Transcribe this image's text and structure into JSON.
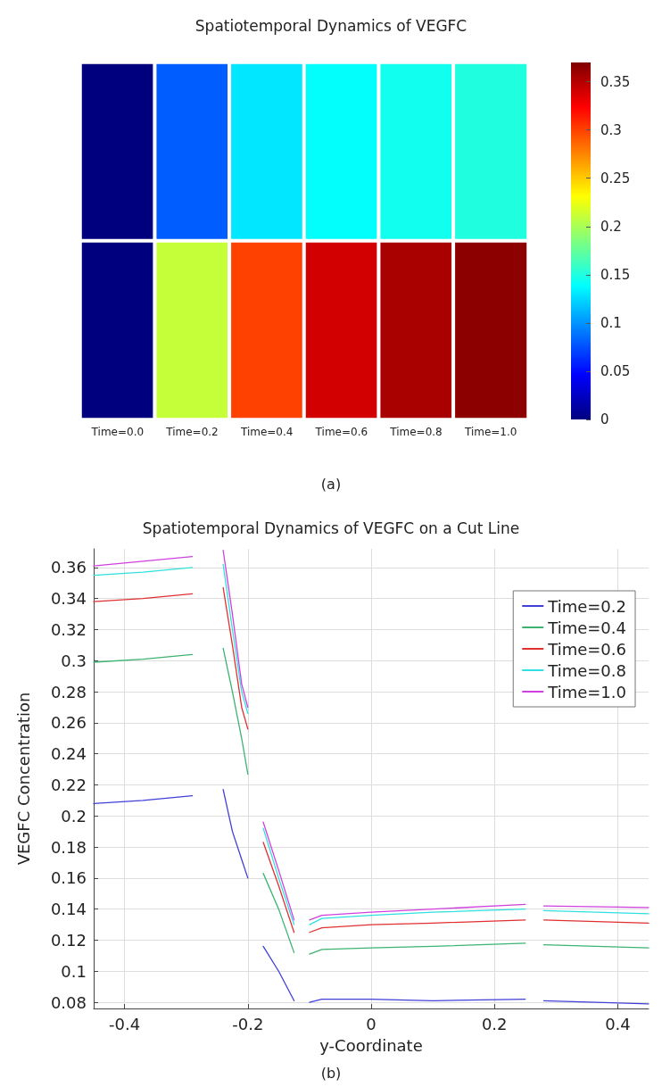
{
  "chart_data": [
    {
      "type": "heatmap",
      "title": "Spatiotemporal Dynamics of VEGFC",
      "categories": [
        "Time=0.0",
        "Time=0.2",
        "Time=0.4",
        "Time=0.6",
        "Time=0.8",
        "Time=1.0"
      ],
      "y_categories": [
        null,
        null
      ],
      "cells": [
        [
          0,
          0.08,
          0.13,
          0.14,
          0.145,
          0.15
        ],
        [
          0,
          0.21,
          0.3,
          0.34,
          0.355,
          0.365
        ]
      ],
      "clim": [
        0,
        0.37
      ],
      "cticks": [
        0,
        0.05,
        0.1,
        0.15,
        0.2,
        0.25,
        0.3,
        0.35
      ],
      "annotations": [
        "(a)"
      ]
    },
    {
      "type": "line",
      "title": "Spatiotemporal Dynamics of VEGFC on a Cut Line",
      "xlabel": "y-Coordinate",
      "ylabel": "VEGFC Concentration",
      "x": [
        -0.45,
        -0.37,
        -0.29,
        -0.265,
        -0.24,
        -0.225,
        -0.21,
        -0.2,
        -0.19,
        -0.175,
        -0.15,
        -0.125,
        -0.11,
        -0.1,
        -0.08,
        0,
        0.1,
        0.25,
        0.265,
        0.28,
        0.45
      ],
      "series": [
        {
          "name": "Time=0.2",
          "color": "#4040d8",
          "values": [
            0.208,
            0.21,
            0.213,
            null,
            0.217,
            0.19,
            0.172,
            0.16,
            null,
            0.116,
            0.1,
            0.081,
            null,
            0.08,
            0.082,
            0.082,
            0.081,
            0.082,
            null,
            0.081,
            0.079
          ]
        },
        {
          "name": "Time=0.4",
          "color": "#3cb371",
          "values": [
            0.299,
            0.301,
            0.304,
            null,
            0.308,
            0.28,
            0.25,
            0.227,
            null,
            0.163,
            0.14,
            0.112,
            null,
            0.111,
            0.114,
            0.115,
            0.116,
            0.118,
            null,
            0.117,
            0.115
          ]
        },
        {
          "name": "Time=0.6",
          "color": "#e03030",
          "values": [
            0.338,
            0.34,
            0.343,
            null,
            0.347,
            0.31,
            0.27,
            0.256,
            null,
            0.183,
            0.155,
            0.125,
            null,
            0.125,
            0.128,
            0.13,
            0.131,
            0.133,
            null,
            0.133,
            0.131
          ]
        },
        {
          "name": "Time=0.8",
          "color": "#30e0e0",
          "values": [
            0.355,
            0.357,
            0.36,
            null,
            0.362,
            0.32,
            0.28,
            0.266,
            null,
            0.192,
            0.16,
            0.13,
            null,
            0.13,
            0.134,
            0.136,
            0.138,
            0.14,
            null,
            0.139,
            0.137
          ]
        },
        {
          "name": "Time=1.0",
          "color": "#d040e0",
          "values": [
            0.361,
            0.364,
            0.367,
            null,
            0.371,
            0.33,
            0.285,
            0.27,
            null,
            0.196,
            0.165,
            0.133,
            null,
            0.133,
            0.136,
            0.138,
            0.14,
            0.143,
            null,
            0.142,
            0.141
          ]
        }
      ],
      "xlim": [
        -0.45,
        0.45
      ],
      "xticks": [
        -0.4,
        -0.2,
        0,
        0.2,
        0.4
      ],
      "ylim": [
        0.076,
        0.372
      ],
      "yticks": [
        0.08,
        0.1,
        0.12,
        0.14,
        0.16,
        0.18,
        0.2,
        0.22,
        0.24,
        0.26,
        0.28,
        0.3,
        0.32,
        0.34,
        0.36
      ],
      "grid": true,
      "legend": "top right",
      "marker": "none",
      "line_style": "solid",
      "annotations": [
        "(b)"
      ]
    }
  ]
}
